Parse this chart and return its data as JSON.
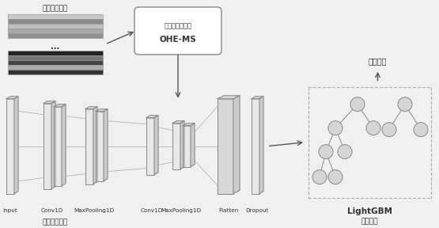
{
  "bg_color": "#f0f0f0",
  "fig_bg": "#f0f0f0",
  "network_label": "网络流量数据",
  "preprocess_box_label1": "数据预处理算法",
  "preprocess_box_label2": "OHE-MS",
  "feature_label": "特征提取算法",
  "classify_result_label": "分类结果",
  "lightgbm_label1": "LightGBM",
  "lightgbm_label2": "分类算法",
  "strip_colors_top": [
    "#c8c8c8",
    "#888888",
    "#c0c0c0",
    "#aaaaaa",
    "#909090"
  ],
  "strip_colors_bot": [
    "#222222",
    "#777777",
    "#444444",
    "#aaaaaa",
    "#333333"
  ],
  "node_color": "#d5d5d5",
  "node_edge_color": "#888888",
  "layer_color": "#e8e8e8",
  "layer_edge_color": "#888888",
  "box_edge_color": "#888888",
  "arrow_color": "#555555",
  "text_color": "#333333",
  "dashed_box_color": "#aaaaaa",
  "conn_color": "#999999"
}
